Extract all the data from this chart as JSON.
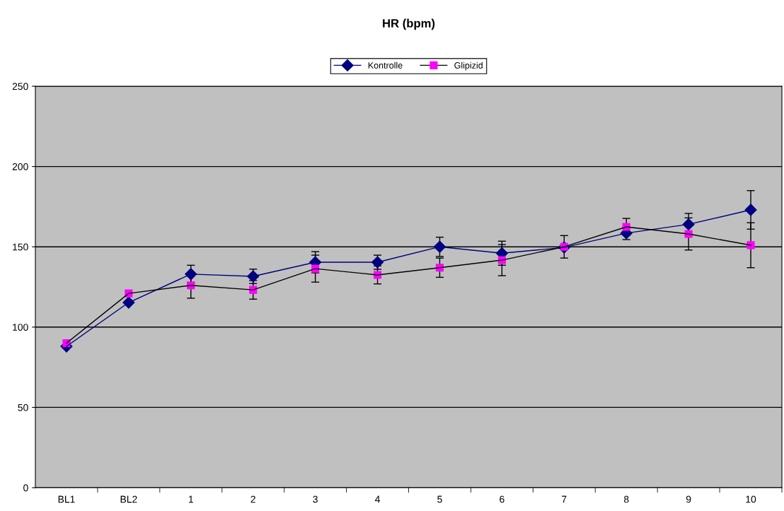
{
  "chart_data": {
    "type": "line",
    "title": "HR (bpm)",
    "categories": [
      "BL1",
      "BL2",
      "1",
      "2",
      "3",
      "4",
      "5",
      "6",
      "7",
      "8",
      "9",
      "10"
    ],
    "series": [
      {
        "name": "Kontrolle",
        "color": "#000080",
        "marker": "diamond",
        "values": [
          88,
          115.3,
          133,
          131.6,
          140.4,
          140.4,
          150,
          146,
          149.6,
          158.5,
          164,
          173
        ],
        "errors": [
          null,
          null,
          5.5,
          4.5,
          6.6,
          4.4,
          6,
          7.5,
          null,
          4,
          6.8,
          12
        ]
      },
      {
        "name": "Glipizid",
        "color": "#ff00ff",
        "marker": "square",
        "values": [
          90,
          121,
          126,
          123.2,
          136.4,
          132.5,
          137,
          141.7,
          150,
          162.4,
          158,
          151
        ],
        "errors": [
          null,
          null,
          8,
          5.8,
          8.4,
          5.6,
          6,
          9.7,
          7,
          5.3,
          10,
          14
        ]
      }
    ],
    "ylim": [
      0,
      250
    ],
    "yticks": [
      0,
      50,
      100,
      150,
      200,
      250
    ],
    "grid": "y",
    "legend": "top"
  }
}
